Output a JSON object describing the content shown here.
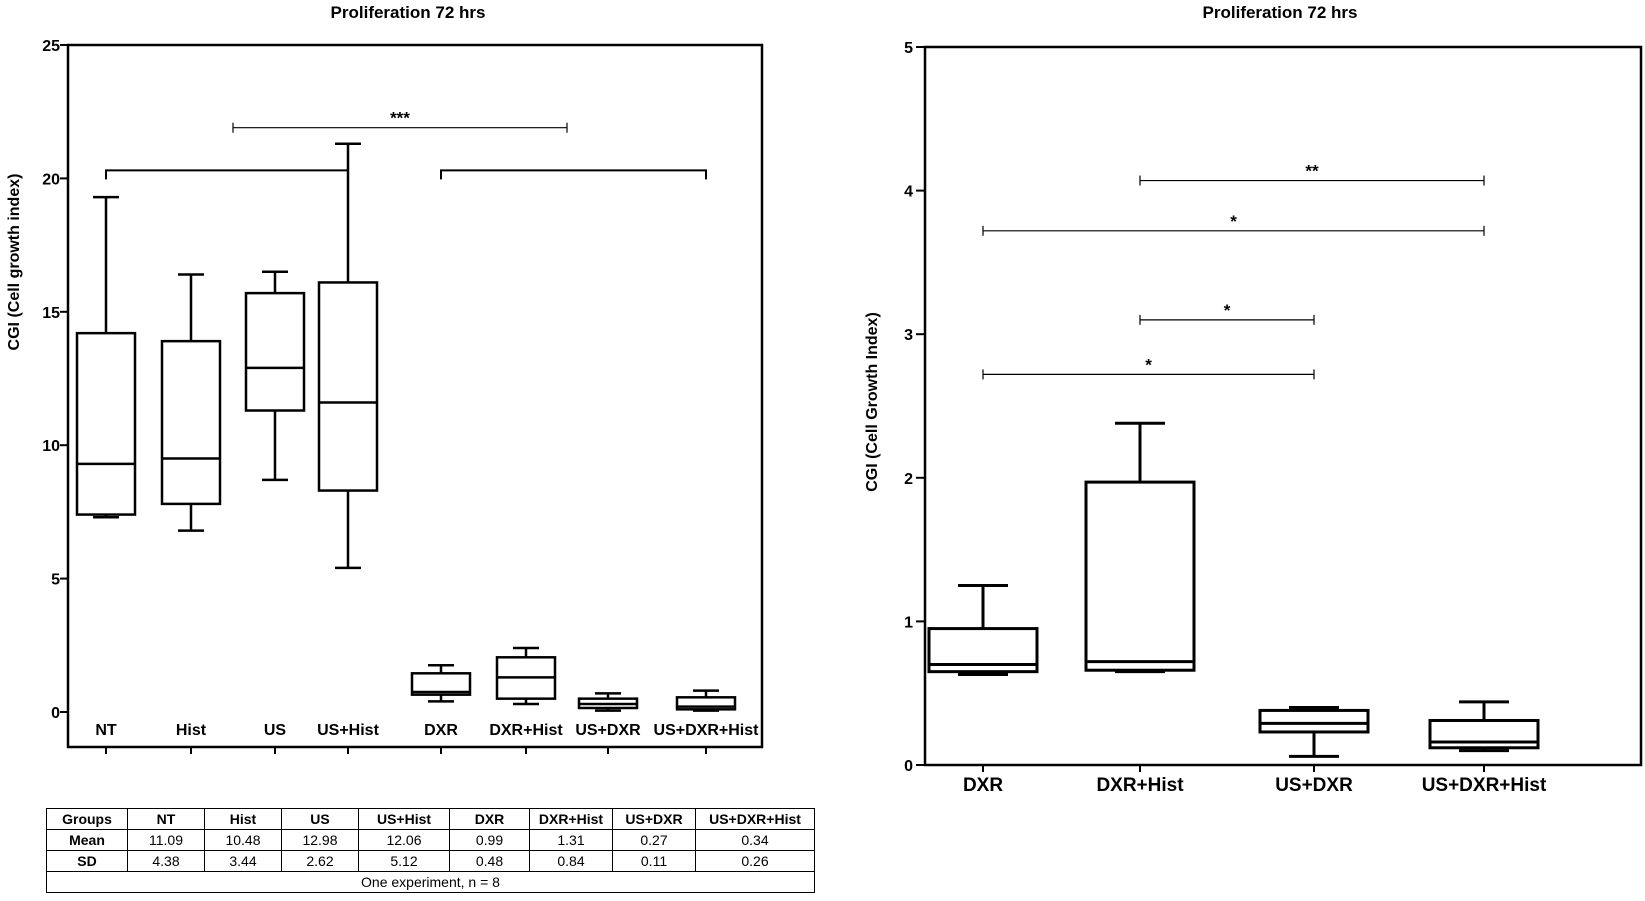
{
  "chart_data": [
    {
      "type": "box",
      "title": "Proliferation 72 hrs",
      "xlabel": "",
      "ylabel": "CGI (Cell growth index)",
      "ylim": [
        0,
        25
      ],
      "yticks": [
        0,
        5,
        10,
        15,
        20,
        25
      ],
      "grid": false,
      "categories": [
        "NT",
        "Hist",
        "US",
        "US+Hist",
        "DXR",
        "DXR+Hist",
        "US+DXR",
        "US+DXR+Hist"
      ],
      "boxes": [
        {
          "min": 7.3,
          "q1": 7.4,
          "median": 9.3,
          "q3": 14.2,
          "max": 19.3
        },
        {
          "min": 6.8,
          "q1": 7.8,
          "median": 9.5,
          "q3": 13.9,
          "max": 16.4
        },
        {
          "min": 8.7,
          "q1": 11.3,
          "median": 12.9,
          "q3": 15.7,
          "max": 16.5
        },
        {
          "min": 5.4,
          "q1": 8.3,
          "median": 11.6,
          "q3": 16.1,
          "max": 21.3
        },
        {
          "min": 0.4,
          "q1": 0.65,
          "median": 0.75,
          "q3": 1.45,
          "max": 1.75
        },
        {
          "min": 0.3,
          "q1": 0.5,
          "median": 1.3,
          "q3": 2.05,
          "max": 2.4
        },
        {
          "min": 0.05,
          "q1": 0.15,
          "median": 0.3,
          "q3": 0.5,
          "max": 0.7
        },
        {
          "min": 0.05,
          "q1": 0.1,
          "median": 0.2,
          "q3": 0.55,
          "max": 0.8
        }
      ],
      "annotations": [
        {
          "type": "bracket",
          "from": 0,
          "to": 3,
          "y": 20.3,
          "label": ""
        },
        {
          "type": "bracket",
          "from": 4,
          "to": 7,
          "y": 20.3,
          "label": ""
        },
        {
          "type": "bar",
          "from": 1.5,
          "to": 5.5,
          "y": 21.9,
          "label": "***"
        }
      ]
    },
    {
      "type": "box",
      "title": "Proliferation 72 hrs",
      "xlabel": "",
      "ylabel": "CGI (Cell  Growth  Index)",
      "ylim": [
        0,
        5
      ],
      "yticks": [
        0,
        1,
        2,
        3,
        4,
        5
      ],
      "grid": false,
      "categories": [
        "DXR",
        "DXR+Hist",
        "US+DXR",
        "US+DXR+Hist"
      ],
      "boxes": [
        {
          "min": 0.63,
          "q1": 0.65,
          "median": 0.7,
          "q3": 0.95,
          "max": 1.25
        },
        {
          "min": 0.65,
          "q1": 0.66,
          "median": 0.72,
          "q3": 1.97,
          "max": 2.38
        },
        {
          "min": 0.06,
          "q1": 0.23,
          "median": 0.29,
          "q3": 0.38,
          "max": 0.4
        },
        {
          "min": 0.1,
          "q1": 0.12,
          "median": 0.16,
          "q3": 0.31,
          "max": 0.44
        }
      ],
      "annotations": [
        {
          "type": "bar",
          "from": 1,
          "to": 3,
          "y": 4.07,
          "label": "**"
        },
        {
          "type": "bar",
          "from": 0,
          "to": 3,
          "y": 3.72,
          "label": "*"
        },
        {
          "type": "bar",
          "from": 1,
          "to": 2,
          "y": 3.1,
          "label": "*"
        },
        {
          "type": "bar",
          "from": 0,
          "to": 2,
          "y": 2.72,
          "label": "*"
        }
      ]
    }
  ],
  "table": {
    "headers": [
      "Groups",
      "NT",
      "Hist",
      "US",
      "US+Hist",
      "DXR",
      "DXR+Hist",
      "US+DXR",
      "US+DXR+Hist"
    ],
    "rows": [
      {
        "label": "Mean",
        "values": [
          "11.09",
          "10.48",
          "12.98",
          "12.06",
          "0.99",
          "1.31",
          "0.27",
          "0.34"
        ]
      },
      {
        "label": "SD",
        "values": [
          "4.38",
          "3.44",
          "2.62",
          "5.12",
          "0.48",
          "0.84",
          "0.11",
          "0.26"
        ]
      }
    ],
    "footer": "One experiment, n = 8"
  },
  "colors": {
    "ink": "#000000",
    "background": "#ffffff"
  }
}
